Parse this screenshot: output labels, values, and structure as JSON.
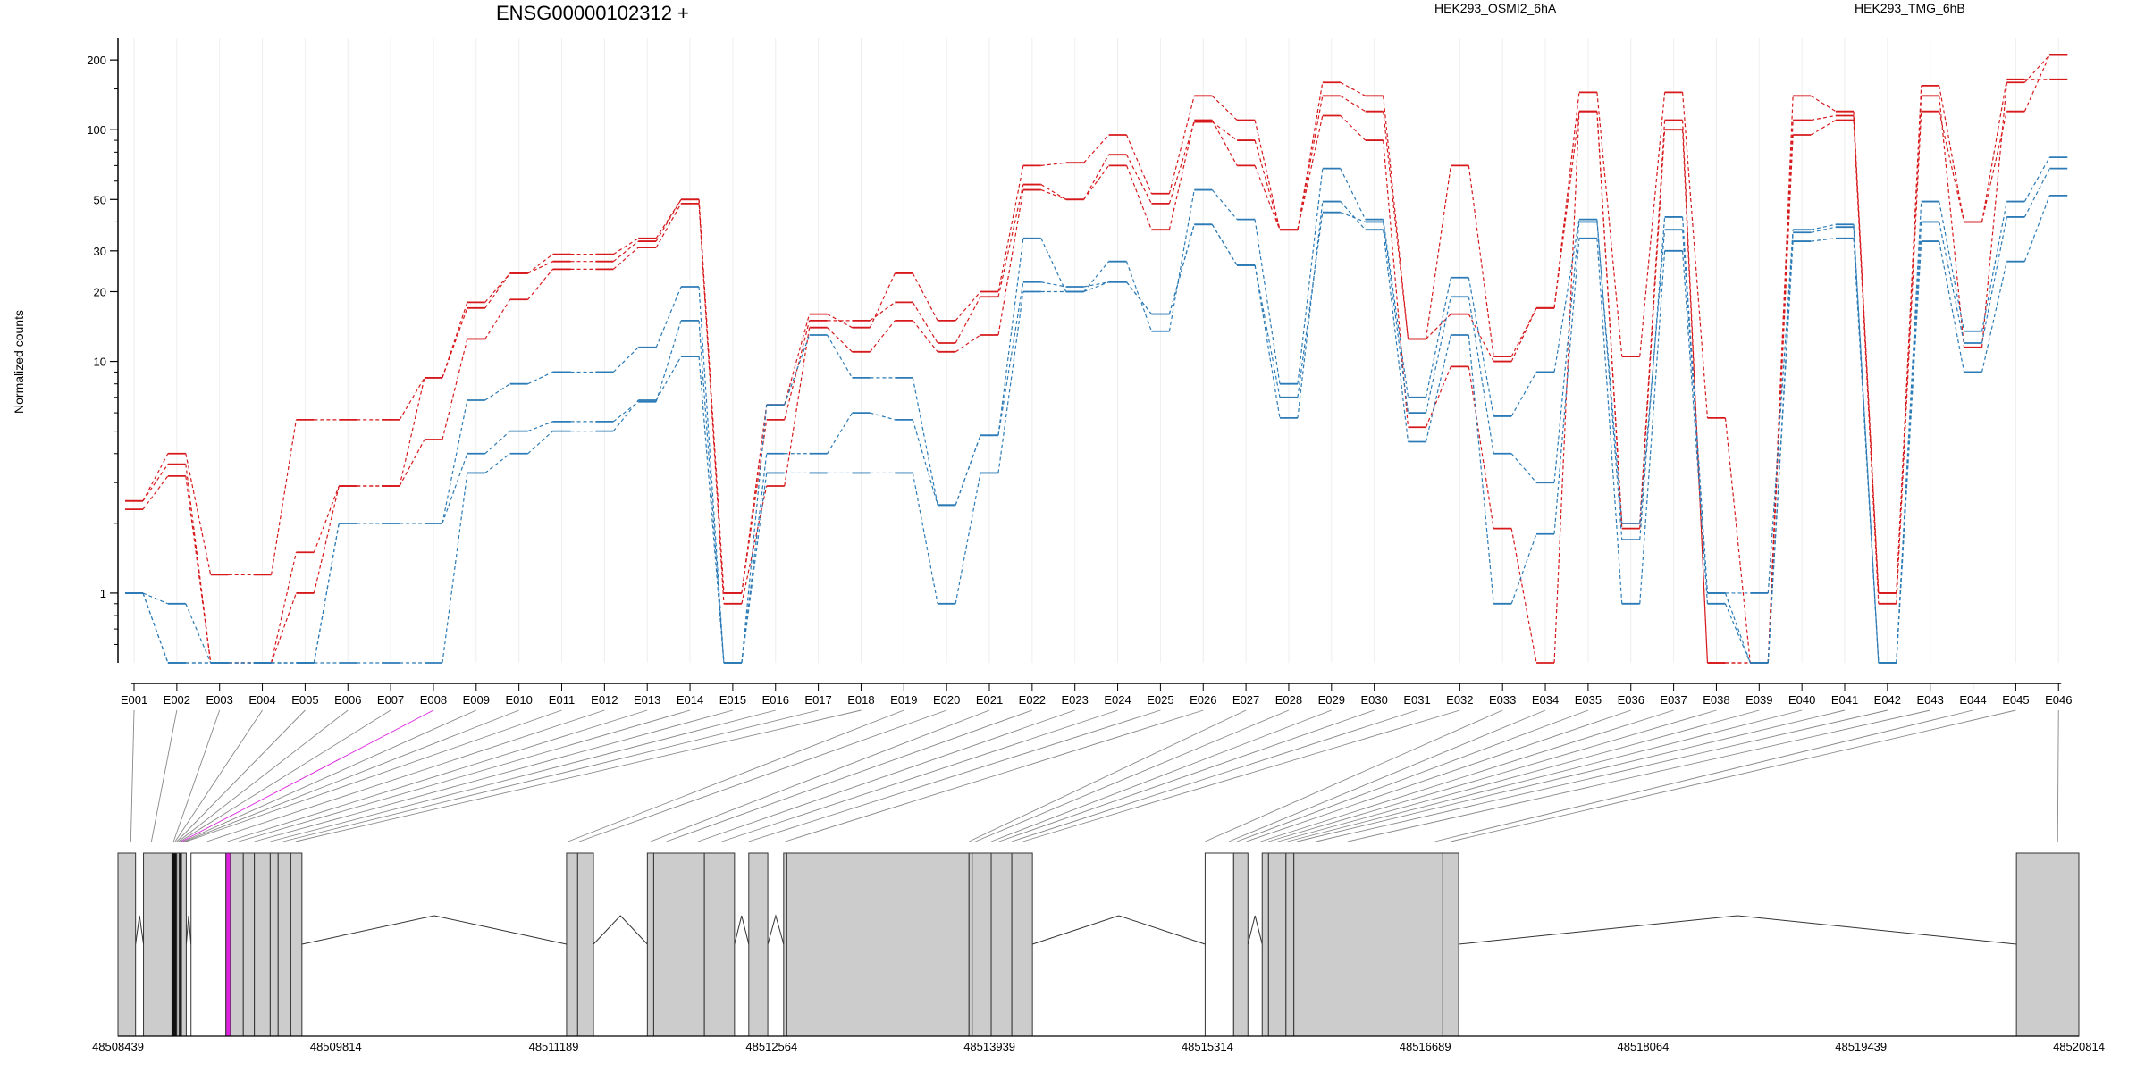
{
  "chart_data": {
    "type": "line",
    "title": "ENSG00000102312 +",
    "ylabel": "Normalized counts",
    "yscale": "log",
    "ylim": [
      0.5,
      250
    ],
    "yticks": [
      1,
      10,
      20,
      30,
      50,
      100,
      200
    ],
    "ytick_labels": [
      "1",
      "10",
      "20",
      "30",
      "50",
      "100",
      "200"
    ],
    "categories": [
      "E001",
      "E002",
      "E003",
      "E004",
      "E005",
      "E006",
      "E007",
      "E008",
      "E009",
      "E010",
      "E011",
      "E012",
      "E013",
      "E014",
      "E015",
      "E016",
      "E017",
      "E018",
      "E019",
      "E020",
      "E021",
      "E022",
      "E023",
      "E024",
      "E025",
      "E026",
      "E027",
      "E028",
      "E029",
      "E030",
      "E031",
      "E032",
      "E033",
      "E034",
      "E035",
      "E036",
      "E037",
      "E038",
      "E039",
      "E040",
      "E041",
      "E042",
      "E043",
      "E044",
      "E045",
      "E046"
    ],
    "legend": [
      {
        "label": "HEK293_OSMI2_6hA",
        "color": "#d7191c"
      },
      {
        "label": "HEK293_TMG_6hB",
        "color": "#2c7bb6"
      }
    ],
    "series": [
      {
        "group": 0,
        "values": [
          2.5,
          3.6,
          0.5,
          0.5,
          1.5,
          2.9,
          2.9,
          4.6,
          12.5,
          18.5,
          25,
          25,
          31,
          48,
          0.9,
          2.9,
          14,
          11,
          15,
          11,
          13,
          55,
          50,
          70,
          37,
          110,
          70,
          37,
          115,
          90,
          5.2,
          9.5,
          1.9,
          0.5,
          120,
          1.9,
          100,
          0.5,
          0.5,
          95,
          110,
          0.9,
          120,
          40,
          120,
          210
        ]
      },
      {
        "group": 0,
        "values": [
          2.3,
          3.2,
          0.5,
          0.5,
          1.0,
          2.9,
          2.9,
          8.5,
          17,
          24,
          27,
          27,
          33,
          50,
          1.0,
          5.6,
          15,
          15,
          18,
          12,
          19,
          58,
          50,
          78,
          48,
          108,
          90,
          37,
          140,
          120,
          12.5,
          16,
          10,
          17,
          120,
          2.0,
          110,
          0.5,
          0.5,
          110,
          115,
          1.0,
          140,
          11.5,
          160,
          210
        ]
      },
      {
        "group": 0,
        "values": [
          2.5,
          4.0,
          1.2,
          1.2,
          5.6,
          5.6,
          5.6,
          8.5,
          18,
          24,
          29,
          29,
          34,
          50,
          1.0,
          6.5,
          16,
          14,
          24,
          15,
          20,
          70,
          72,
          95,
          53,
          140,
          110,
          37,
          160,
          140,
          12.5,
          70,
          10.5,
          17,
          145,
          10.5,
          145,
          5.7,
          0.5,
          140,
          120,
          1.0,
          155,
          40,
          165,
          165
        ]
      },
      {
        "group": 1,
        "values": [
          1.0,
          0.9,
          0.5,
          0.5,
          0.5,
          2.0,
          2.0,
          2.0,
          6.8,
          8.0,
          9.0,
          9.0,
          11.5,
          21,
          0.5,
          6.5,
          13,
          8.5,
          8.5,
          2.4,
          4.8,
          34,
          20,
          27,
          13.5,
          55,
          41,
          8.0,
          68,
          41,
          7.0,
          23,
          5.8,
          9.0,
          41,
          1.7,
          42,
          1.0,
          1.0,
          37,
          39,
          0.5,
          49,
          13.5,
          49,
          76
        ]
      },
      {
        "group": 1,
        "values": [
          1.0,
          0.5,
          0.5,
          0.5,
          0.5,
          2.0,
          2.0,
          2.0,
          4.0,
          5.0,
          5.5,
          5.5,
          6.7,
          15,
          0.5,
          4.0,
          4.0,
          6.0,
          5.6,
          2.4,
          4.8,
          22,
          21,
          22,
          16,
          39,
          26,
          7.0,
          44,
          40,
          6.0,
          19,
          4.0,
          3.0,
          40,
          2.0,
          37,
          1.0,
          0.5,
          36,
          38,
          0.5,
          40,
          12,
          42,
          68
        ]
      },
      {
        "group": 1,
        "values": [
          1.0,
          0.5,
          0.5,
          0.5,
          0.5,
          0.5,
          0.5,
          0.5,
          3.3,
          4.0,
          5.0,
          5.0,
          6.8,
          10.5,
          0.5,
          3.3,
          3.3,
          3.3,
          3.3,
          0.9,
          3.3,
          20,
          20,
          22,
          16,
          39,
          26,
          5.7,
          49,
          37,
          4.5,
          13,
          0.9,
          1.8,
          34,
          0.9,
          30,
          0.9,
          0.5,
          33,
          34,
          0.5,
          33,
          9.0,
          27,
          52
        ]
      }
    ]
  },
  "gene_model": {
    "coordinates": [
      "48508439",
      "48509814",
      "48511189",
      "48512564",
      "48513939",
      "48515314",
      "48516689",
      "48518064",
      "48519439",
      "48520814"
    ],
    "highlight_color": "#dd22dd"
  }
}
